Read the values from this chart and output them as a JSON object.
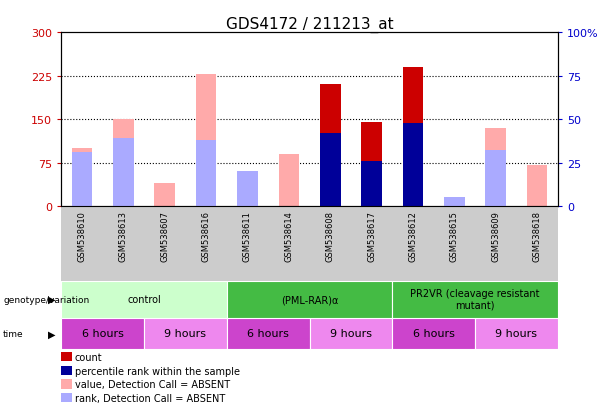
{
  "title": "GDS4172 / 211213_at",
  "samples": [
    "GSM538610",
    "GSM538613",
    "GSM538607",
    "GSM538616",
    "GSM538611",
    "GSM538614",
    "GSM538608",
    "GSM538617",
    "GSM538612",
    "GSM538615",
    "GSM538609",
    "GSM538618"
  ],
  "count_values": [
    null,
    null,
    null,
    null,
    null,
    null,
    210,
    145,
    240,
    null,
    null,
    null
  ],
  "rank_values": [
    null,
    null,
    null,
    null,
    null,
    null,
    42,
    26,
    48,
    null,
    null,
    null
  ],
  "absent_value_values": [
    100,
    150,
    40,
    228,
    50,
    90,
    null,
    null,
    null,
    null,
    135,
    70
  ],
  "absent_rank_values": [
    31,
    39,
    null,
    38,
    20,
    null,
    null,
    null,
    null,
    5,
    32,
    null
  ],
  "ylim_left": [
    0,
    300
  ],
  "ylim_right": [
    0,
    100
  ],
  "yticks_left": [
    0,
    75,
    150,
    225,
    300
  ],
  "yticks_right": [
    0,
    25,
    50,
    75,
    100
  ],
  "ytick_labels_left": [
    "0",
    "75",
    "150",
    "225",
    "300"
  ],
  "ytick_labels_right": [
    "0",
    "25",
    "50",
    "75",
    "100%"
  ],
  "color_count": "#cc0000",
  "color_rank": "#000099",
  "color_absent_value": "#ffaaaa",
  "color_absent_rank": "#aaaaff",
  "genotype_groups": [
    {
      "label": "control",
      "start": 0,
      "end": 4,
      "color": "#ccffcc"
    },
    {
      "label": "(PML-RAR)α",
      "start": 4,
      "end": 8,
      "color": "#44bb44"
    },
    {
      "label": "PR2VR (cleavage resistant\nmutant)",
      "start": 8,
      "end": 12,
      "color": "#44bb44"
    }
  ],
  "time_groups": [
    {
      "label": "6 hours",
      "start": 0,
      "end": 2,
      "color": "#cc44cc"
    },
    {
      "label": "9 hours",
      "start": 2,
      "end": 4,
      "color": "#ee88ee"
    },
    {
      "label": "6 hours",
      "start": 4,
      "end": 6,
      "color": "#cc44cc"
    },
    {
      "label": "9 hours",
      "start": 6,
      "end": 8,
      "color": "#ee88ee"
    },
    {
      "label": "6 hours",
      "start": 8,
      "end": 10,
      "color": "#cc44cc"
    },
    {
      "label": "9 hours",
      "start": 10,
      "end": 12,
      "color": "#ee88ee"
    }
  ],
  "legend_items": [
    {
      "color": "#cc0000",
      "label": "count"
    },
    {
      "color": "#000099",
      "label": "percentile rank within the sample"
    },
    {
      "color": "#ffaaaa",
      "label": "value, Detection Call = ABSENT"
    },
    {
      "color": "#aaaaff",
      "label": "rank, Detection Call = ABSENT"
    }
  ]
}
